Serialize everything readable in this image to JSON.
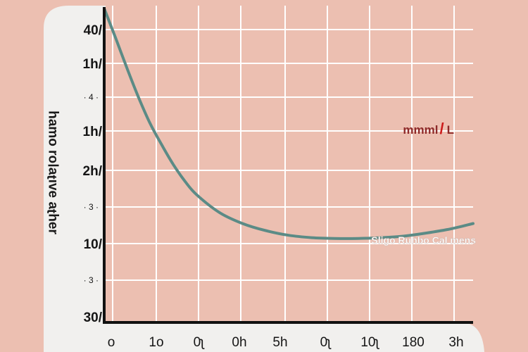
{
  "colors": {
    "background": "#ecbfb1",
    "panel": "#f1f0ee",
    "grid": "#ffffff",
    "curve": "#5b8b86",
    "axis": "#111111",
    "unit_accent": "#b0202a"
  },
  "chart_data": {
    "type": "line",
    "title": "",
    "ylabel": "ɹǝɥʇɐ ǝʌıʇɐןoɹ oɯɐɥ",
    "xlabel": "",
    "grid": true,
    "x_tick_labels": [
      "o",
      "1o",
      "0ʅ",
      "0h",
      "5h",
      "0ʅ",
      "10ʅ",
      "180",
      "3h"
    ],
    "y_tick_labels": [
      "40/",
      "1h/",
      "· 4 ·",
      "1h/",
      "2h/",
      "· 3 ·",
      "10/",
      "· 3 ·",
      "30/"
    ],
    "annotations": {
      "unit": {
        "text_before": "mmml",
        "slash": "/",
        "text_after": "L"
      },
      "series_note": "Sligo Ruhbo Cal  mens"
    },
    "series": [
      {
        "x": [
          0,
          0.25,
          0.5,
          0.75,
          1,
          1.25,
          1.5,
          1.75,
          2,
          2.5,
          3,
          3.5,
          4,
          4.5,
          5,
          5.5,
          6,
          6.5,
          7,
          7.5,
          8
        ],
        "y": [
          40,
          36.2,
          32.3,
          28.6,
          25.3,
          22.6,
          20.1,
          18.0,
          16.3,
          14.0,
          12.6,
          11.7,
          11.1,
          10.8,
          10.7,
          10.7,
          10.8,
          11.0,
          11.4,
          11.9,
          12.6
        ]
      }
    ],
    "xlim": [
      0,
      8
    ],
    "ylim": [
      0,
      40
    ]
  }
}
